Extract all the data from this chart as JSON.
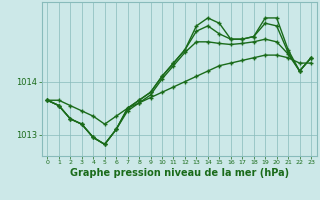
{
  "background_color": "#cce8e8",
  "grid_color": "#88bbbb",
  "line_color": "#1a6b1a",
  "marker_color": "#1a6b1a",
  "xlabel": "Graphe pression niveau de la mer (hPa)",
  "xlabel_fontsize": 7,
  "xticks": [
    0,
    1,
    2,
    3,
    4,
    5,
    6,
    7,
    8,
    9,
    10,
    11,
    12,
    13,
    14,
    15,
    16,
    17,
    18,
    19,
    20,
    21,
    22,
    23
  ],
  "xlim": [
    -0.5,
    23.5
  ],
  "ylim": [
    1012.6,
    1015.5
  ],
  "yticks": [
    1013,
    1014
  ],
  "series": [
    [
      1013.65,
      1013.65,
      1013.55,
      1013.45,
      1013.35,
      1013.2,
      1013.35,
      1013.5,
      1013.6,
      1013.7,
      1013.8,
      1013.9,
      1014.0,
      1014.1,
      1014.2,
      1014.3,
      1014.35,
      1014.4,
      1014.45,
      1014.5,
      1014.5,
      1014.45,
      1014.35,
      1014.35
    ],
    [
      1013.65,
      1013.55,
      1013.3,
      1013.2,
      1012.95,
      1012.82,
      1013.1,
      1013.45,
      1013.6,
      1013.75,
      1014.05,
      1014.3,
      1014.55,
      1014.75,
      1014.75,
      1014.72,
      1014.7,
      1014.72,
      1014.75,
      1014.8,
      1014.75,
      1014.52,
      1014.2,
      1014.45
    ],
    [
      1013.65,
      1013.55,
      1013.3,
      1013.2,
      1012.95,
      1012.82,
      1013.1,
      1013.5,
      1013.65,
      1013.8,
      1014.1,
      1014.35,
      1014.6,
      1014.95,
      1015.05,
      1014.9,
      1014.8,
      1014.8,
      1014.85,
      1015.1,
      1015.05,
      1014.55,
      1014.2,
      1014.45
    ],
    [
      1013.65,
      1013.55,
      1013.3,
      1013.2,
      1012.95,
      1012.82,
      1013.1,
      1013.5,
      1013.65,
      1013.8,
      1014.1,
      1014.35,
      1014.6,
      1015.05,
      1015.2,
      1015.1,
      1014.8,
      1014.8,
      1014.85,
      1015.2,
      1015.2,
      1014.6,
      1014.2,
      1014.45
    ]
  ],
  "linewidths": [
    1.0,
    1.0,
    1.0,
    1.0
  ],
  "marker": "+",
  "markersize": 3,
  "markeredgewidth": 1.0
}
